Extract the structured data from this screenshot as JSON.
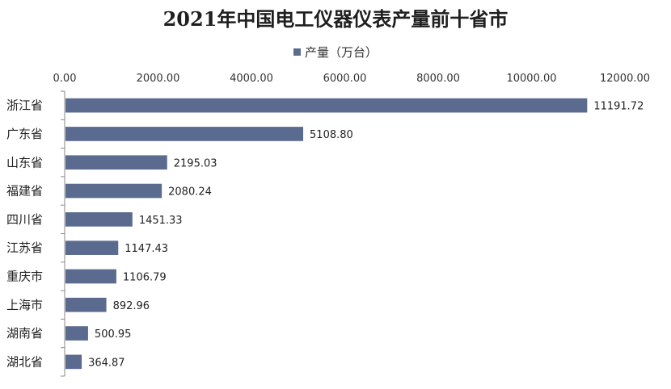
{
  "chart_data": {
    "type": "bar",
    "orientation": "horizontal",
    "title": "2021年中国电工仪器仪表产量前十省市",
    "legend_position": "top",
    "series": [
      {
        "name": "产量（万台）",
        "color": "#5b6b8f",
        "values": [
          11191.72,
          5108.8,
          2195.03,
          2080.24,
          1451.33,
          1147.43,
          1106.79,
          892.96,
          500.95,
          364.87
        ]
      }
    ],
    "categories": [
      "浙江省",
      "广东省",
      "山东省",
      "福建省",
      "四川省",
      "江苏省",
      "重庆市",
      "上海市",
      "湖南省",
      "湖北省"
    ],
    "data_labels": [
      "11191.72",
      "5108.80",
      "2195.03",
      "2080.24",
      "1451.33",
      "1147.43",
      "1106.79",
      "892.96",
      "500.95",
      "364.87"
    ],
    "x_tick_labels": [
      "0.00",
      "2000.00",
      "4000.00",
      "6000.00",
      "8000.00",
      "10000.00",
      "12000.00"
    ],
    "xlim": [
      0,
      12000
    ],
    "x_axis_position": "top",
    "grid": false
  }
}
